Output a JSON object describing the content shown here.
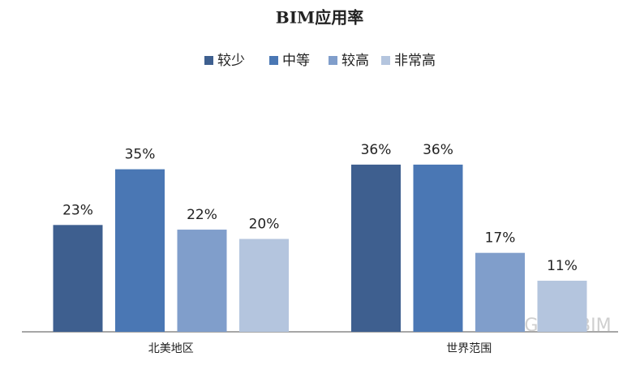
{
  "chart_data": {
    "type": "bar",
    "title": "BIM应用率",
    "categories": [
      "北美地区",
      "世界范围"
    ],
    "series": [
      {
        "name": "较少",
        "color": "#3e5f8f",
        "values": [
          23,
          36
        ],
        "value_labels": [
          "23%",
          "36%"
        ]
      },
      {
        "name": "中等",
        "color": "#4a77b4",
        "values": [
          35,
          36
        ],
        "value_labels": [
          "35%",
          "36%"
        ]
      },
      {
        "name": "较高",
        "color": "#809ecb",
        "values": [
          22,
          17
        ],
        "value_labels": [
          "22%",
          "17%"
        ]
      },
      {
        "name": "非常高",
        "color": "#b4c5de",
        "values": [
          20,
          11
        ],
        "value_labels": [
          "20%",
          "11%"
        ]
      }
    ],
    "ylim": [
      0,
      40
    ],
    "grid": false,
    "legend": "top",
    "watermark": "GreenBIM"
  }
}
